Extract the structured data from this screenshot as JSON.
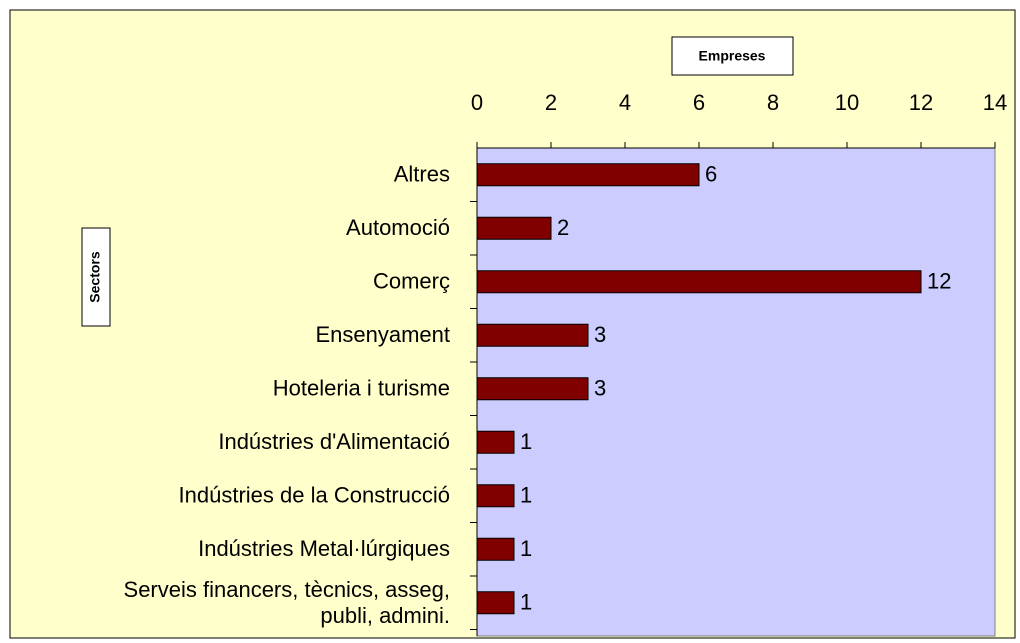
{
  "chart_data": {
    "type": "bar",
    "orientation": "horizontal",
    "x_label": "Empreses",
    "y_label": "Sectors",
    "categories": [
      "Altres",
      "Automoció",
      "Comerç",
      "Ensenyament",
      "Hoteleria i turisme",
      "Indústries d'Alimentació",
      "Indústries de la Construcció",
      "Indústries Metal·lúrgiques",
      "Serveis financers, tècnics, asseg,\npubli, admini."
    ],
    "values": [
      6,
      2,
      12,
      3,
      3,
      1,
      1,
      1,
      1
    ],
    "color": "#800000",
    "xlim": [
      0,
      14
    ],
    "xticks": [
      0,
      2,
      4,
      6,
      8,
      10,
      12,
      14
    ]
  }
}
